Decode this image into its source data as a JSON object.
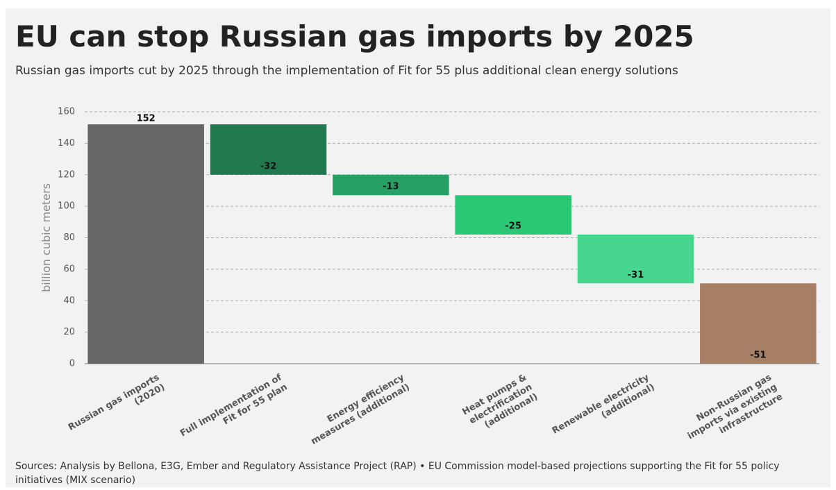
{
  "chart_data": {
    "type": "waterfall",
    "title": "EU can stop Russian gas imports by 2025",
    "subtitle": "Russian gas imports cut by 2025 through the implementation of Fit for 55 plus additional clean energy solutions",
    "y_label": "billion cubic meters",
    "source": "Sources: Analysis by Bellona, E3G, Ember and Regulatory Assistance Project (RAP) • EU Commission model-based projections supporting the Fit for 55 policy initiatives (MIX scenario)",
    "categories": [
      "Russian gas imports\n(2020)",
      "Full implementation of\nFit for 55 plan",
      "Energy efficiency\nmeasures (additional)",
      "Heat pumps &\nelectrification\n(additional)",
      "Renewable electricity\n(additional)",
      "Non-Russian gas\nimports via existing\ninfrastructure"
    ],
    "values": [
      152,
      -32,
      -13,
      -25,
      -31,
      -51
    ],
    "colors": [
      "#666666",
      "#217a4f",
      "#26a065",
      "#2ac775",
      "#46d68e",
      "#a67f65"
    ],
    "ylim": [
      0,
      160
    ],
    "yticks": [
      0,
      20,
      40,
      60,
      80,
      100,
      120,
      140,
      160
    ],
    "grid": true
  }
}
